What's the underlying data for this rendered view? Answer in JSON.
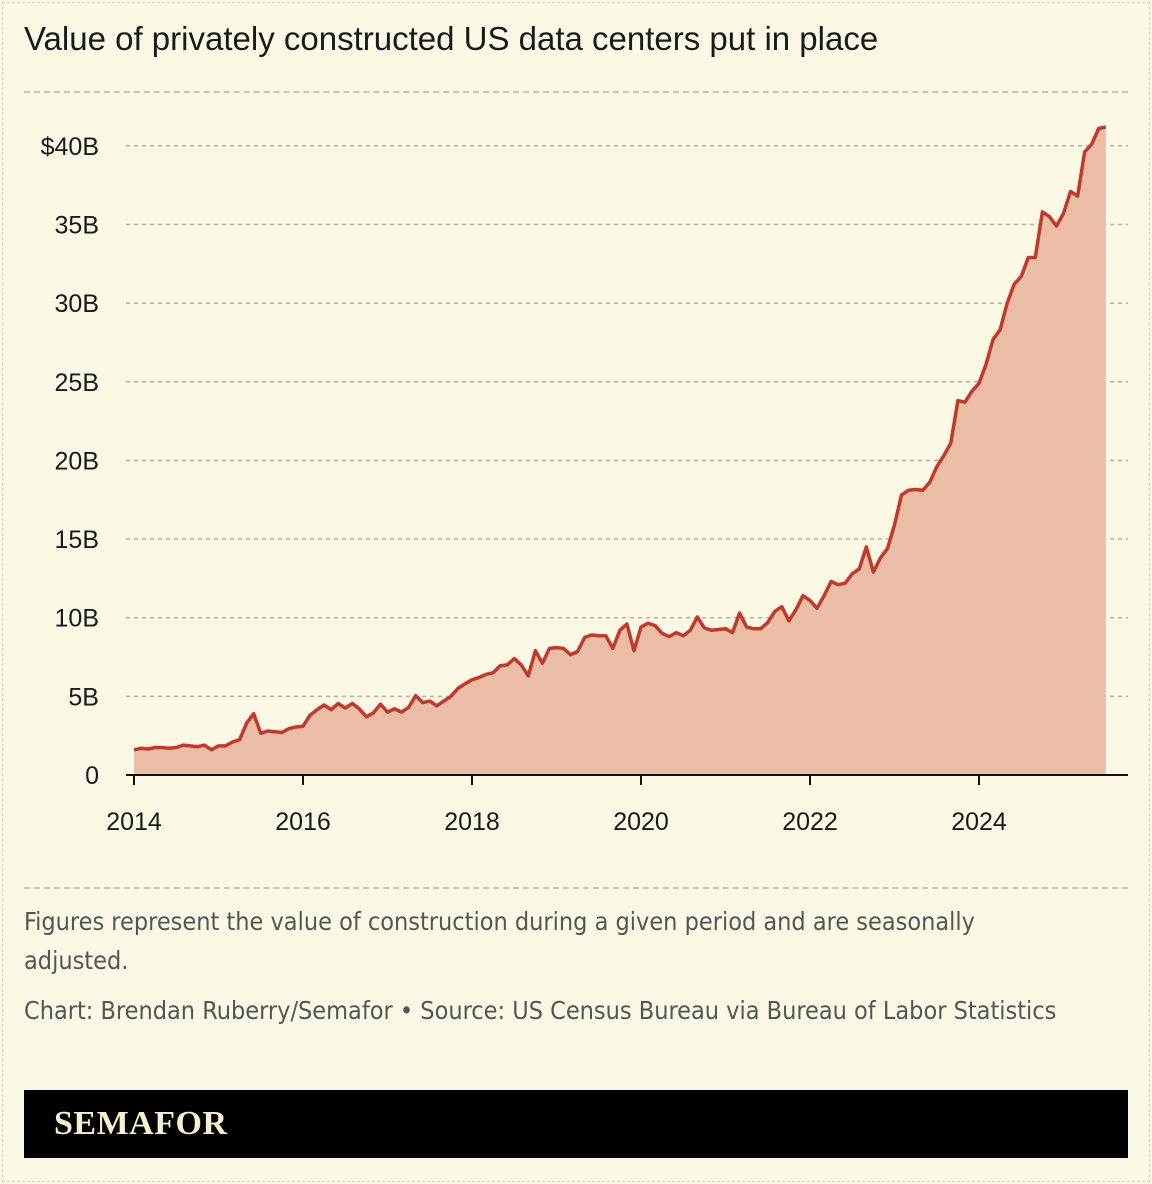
{
  "chart_data": {
    "type": "area",
    "title": "Value of privately constructed US data centers put in place",
    "xlabel": "",
    "ylabel": "",
    "x_start": "2014-01",
    "x_frequency": "monthly",
    "x_ticks": [
      "2014",
      "2016",
      "2018",
      "2020",
      "2022",
      "2024"
    ],
    "y_ticks": [
      {
        "value": 0,
        "label": "0"
      },
      {
        "value": 5,
        "label": "5B"
      },
      {
        "value": 10,
        "label": "10B"
      },
      {
        "value": 15,
        "label": "15B"
      },
      {
        "value": 20,
        "label": "20B"
      },
      {
        "value": 25,
        "label": "25B"
      },
      {
        "value": 30,
        "label": "30B"
      },
      {
        "value": 35,
        "label": "35B"
      },
      {
        "value": 40,
        "label": "$40B"
      }
    ],
    "ylim": [
      0,
      42
    ],
    "xlim": [
      "2014-01",
      "2025-07"
    ],
    "unit": "billion USD",
    "grid": "horizontal dashed",
    "line_color": "#c0392b",
    "fill_color": "#ebbca6",
    "values": [
      1.6,
      1.7,
      1.65,
      1.75,
      1.75,
      1.7,
      1.75,
      1.9,
      1.85,
      1.8,
      1.9,
      1.6,
      1.85,
      1.85,
      2.1,
      2.25,
      3.3,
      3.9,
      2.65,
      2.8,
      2.75,
      2.7,
      2.95,
      3.05,
      3.1,
      3.8,
      4.15,
      4.45,
      4.15,
      4.55,
      4.25,
      4.55,
      4.2,
      3.7,
      3.95,
      4.5,
      4.0,
      4.2,
      4.0,
      4.3,
      5.05,
      4.6,
      4.7,
      4.4,
      4.7,
      5.0,
      5.5,
      5.8,
      6.05,
      6.2,
      6.4,
      6.5,
      6.95,
      7.0,
      7.4,
      7.0,
      6.3,
      7.9,
      7.1,
      8.05,
      8.1,
      8.05,
      7.65,
      7.85,
      8.75,
      8.9,
      8.85,
      8.85,
      8.05,
      9.2,
      9.6,
      7.9,
      9.4,
      9.65,
      9.5,
      9.0,
      8.8,
      9.05,
      8.85,
      9.2,
      10.05,
      9.35,
      9.2,
      9.25,
      9.3,
      9.05,
      10.3,
      9.4,
      9.3,
      9.3,
      9.7,
      10.4,
      10.7,
      9.8,
      10.5,
      11.4,
      11.1,
      10.6,
      11.4,
      12.3,
      12.1,
      12.2,
      12.8,
      13.1,
      14.5,
      12.9,
      13.8,
      14.4,
      15.9,
      17.8,
      18.1,
      18.15,
      18.1,
      18.6,
      19.6,
      20.3,
      21.1,
      23.8,
      23.7,
      24.4,
      24.9,
      26.1,
      27.7,
      28.3,
      30.0,
      31.2,
      31.7,
      32.9,
      32.9,
      35.8,
      35.5,
      34.9,
      35.7,
      37.1,
      36.8,
      39.6,
      40.1,
      41.1,
      41.2
    ]
  },
  "footer": {
    "note": "Figures represent the value of construction during a given period and are seasonally adjusted.",
    "credit": "Chart: Brendan Ruberry/Semafor • Source: US Census Bureau via Bureau of Labor Statistics",
    "logo": "SEMAFOR"
  }
}
